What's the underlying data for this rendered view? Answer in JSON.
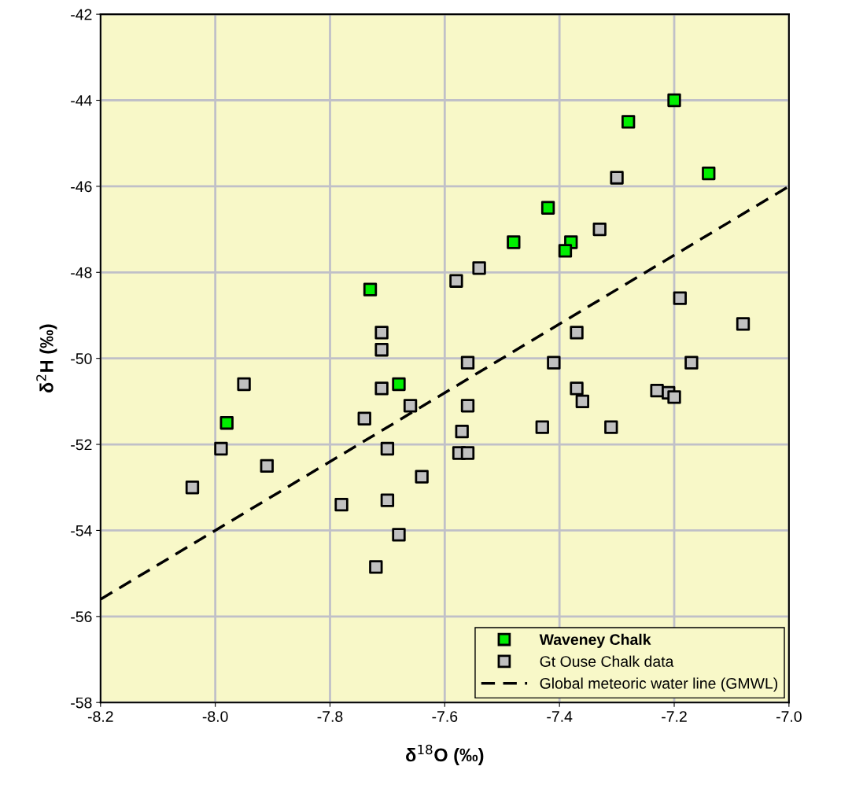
{
  "chart_data": {
    "type": "scatter",
    "xlabel": "δ$^{18}$O (‰)",
    "ylabel": "δ$^{2}$H (‰)",
    "xlim": [
      -8.2,
      -7.0
    ],
    "ylim": [
      -58,
      -42
    ],
    "xticks": [
      -8.2,
      {
        "value": -8.0,
        "label": "-8.0"
      },
      -7.8,
      -7.6,
      -7.4,
      -7.2,
      {
        "value": -7.0,
        "label": "-7.0"
      }
    ],
    "yticks": [
      -58,
      -56,
      -54,
      -52,
      -50,
      -48,
      -46,
      -44,
      -42
    ],
    "grid": true,
    "legend": "bottom right",
    "marker": "square",
    "series": [
      {
        "name": "Waveney Chalk",
        "color": "#00ee00",
        "x": [
          -7.2,
          -7.28,
          -7.14,
          -7.42,
          -7.48,
          -7.38,
          -7.39,
          -7.73,
          -7.68,
          -7.98
        ],
        "values": [
          -44.0,
          -44.5,
          -45.7,
          -46.5,
          -47.3,
          -47.3,
          -47.5,
          -48.4,
          -50.6,
          -51.5
        ]
      },
      {
        "name": "Gt Ouse Chalk data",
        "color": "#c0c0c0",
        "x": [
          -7.3,
          -7.33,
          -7.54,
          -7.58,
          -7.19,
          -7.08,
          -7.71,
          -7.37,
          -7.71,
          -7.56,
          -7.41,
          -7.17,
          -7.95,
          -7.71,
          -7.37,
          -7.23,
          -7.21,
          -7.2,
          -7.36,
          -7.66,
          -7.56,
          -7.74,
          -7.43,
          -7.31,
          -7.57,
          -7.99,
          -7.7,
          -7.575,
          -7.56,
          -7.91,
          -7.64,
          -8.04,
          -7.78,
          -7.7,
          -7.68,
          -7.72
        ],
        "values": [
          -45.8,
          -47.0,
          -47.9,
          -48.2,
          -48.6,
          -49.2,
          -49.4,
          -49.4,
          -49.8,
          -50.1,
          -50.1,
          -50.1,
          -50.6,
          -50.7,
          -50.7,
          -50.75,
          -50.8,
          -50.9,
          -51.0,
          -51.1,
          -51.1,
          -51.4,
          -51.6,
          -51.6,
          -51.7,
          -52.1,
          -52.1,
          -52.2,
          -52.2,
          -52.5,
          -52.75,
          -53.0,
          -53.4,
          -53.3,
          -54.1,
          -54.85
        ]
      },
      {
        "name": "Global meteoric water line (GMWL)",
        "type": "line",
        "color": "#000000",
        "marker": "none",
        "line_style": "dashed",
        "x": [
          -8.2,
          -7.0
        ],
        "values": [
          -55.6,
          -46.0
        ]
      }
    ]
  }
}
